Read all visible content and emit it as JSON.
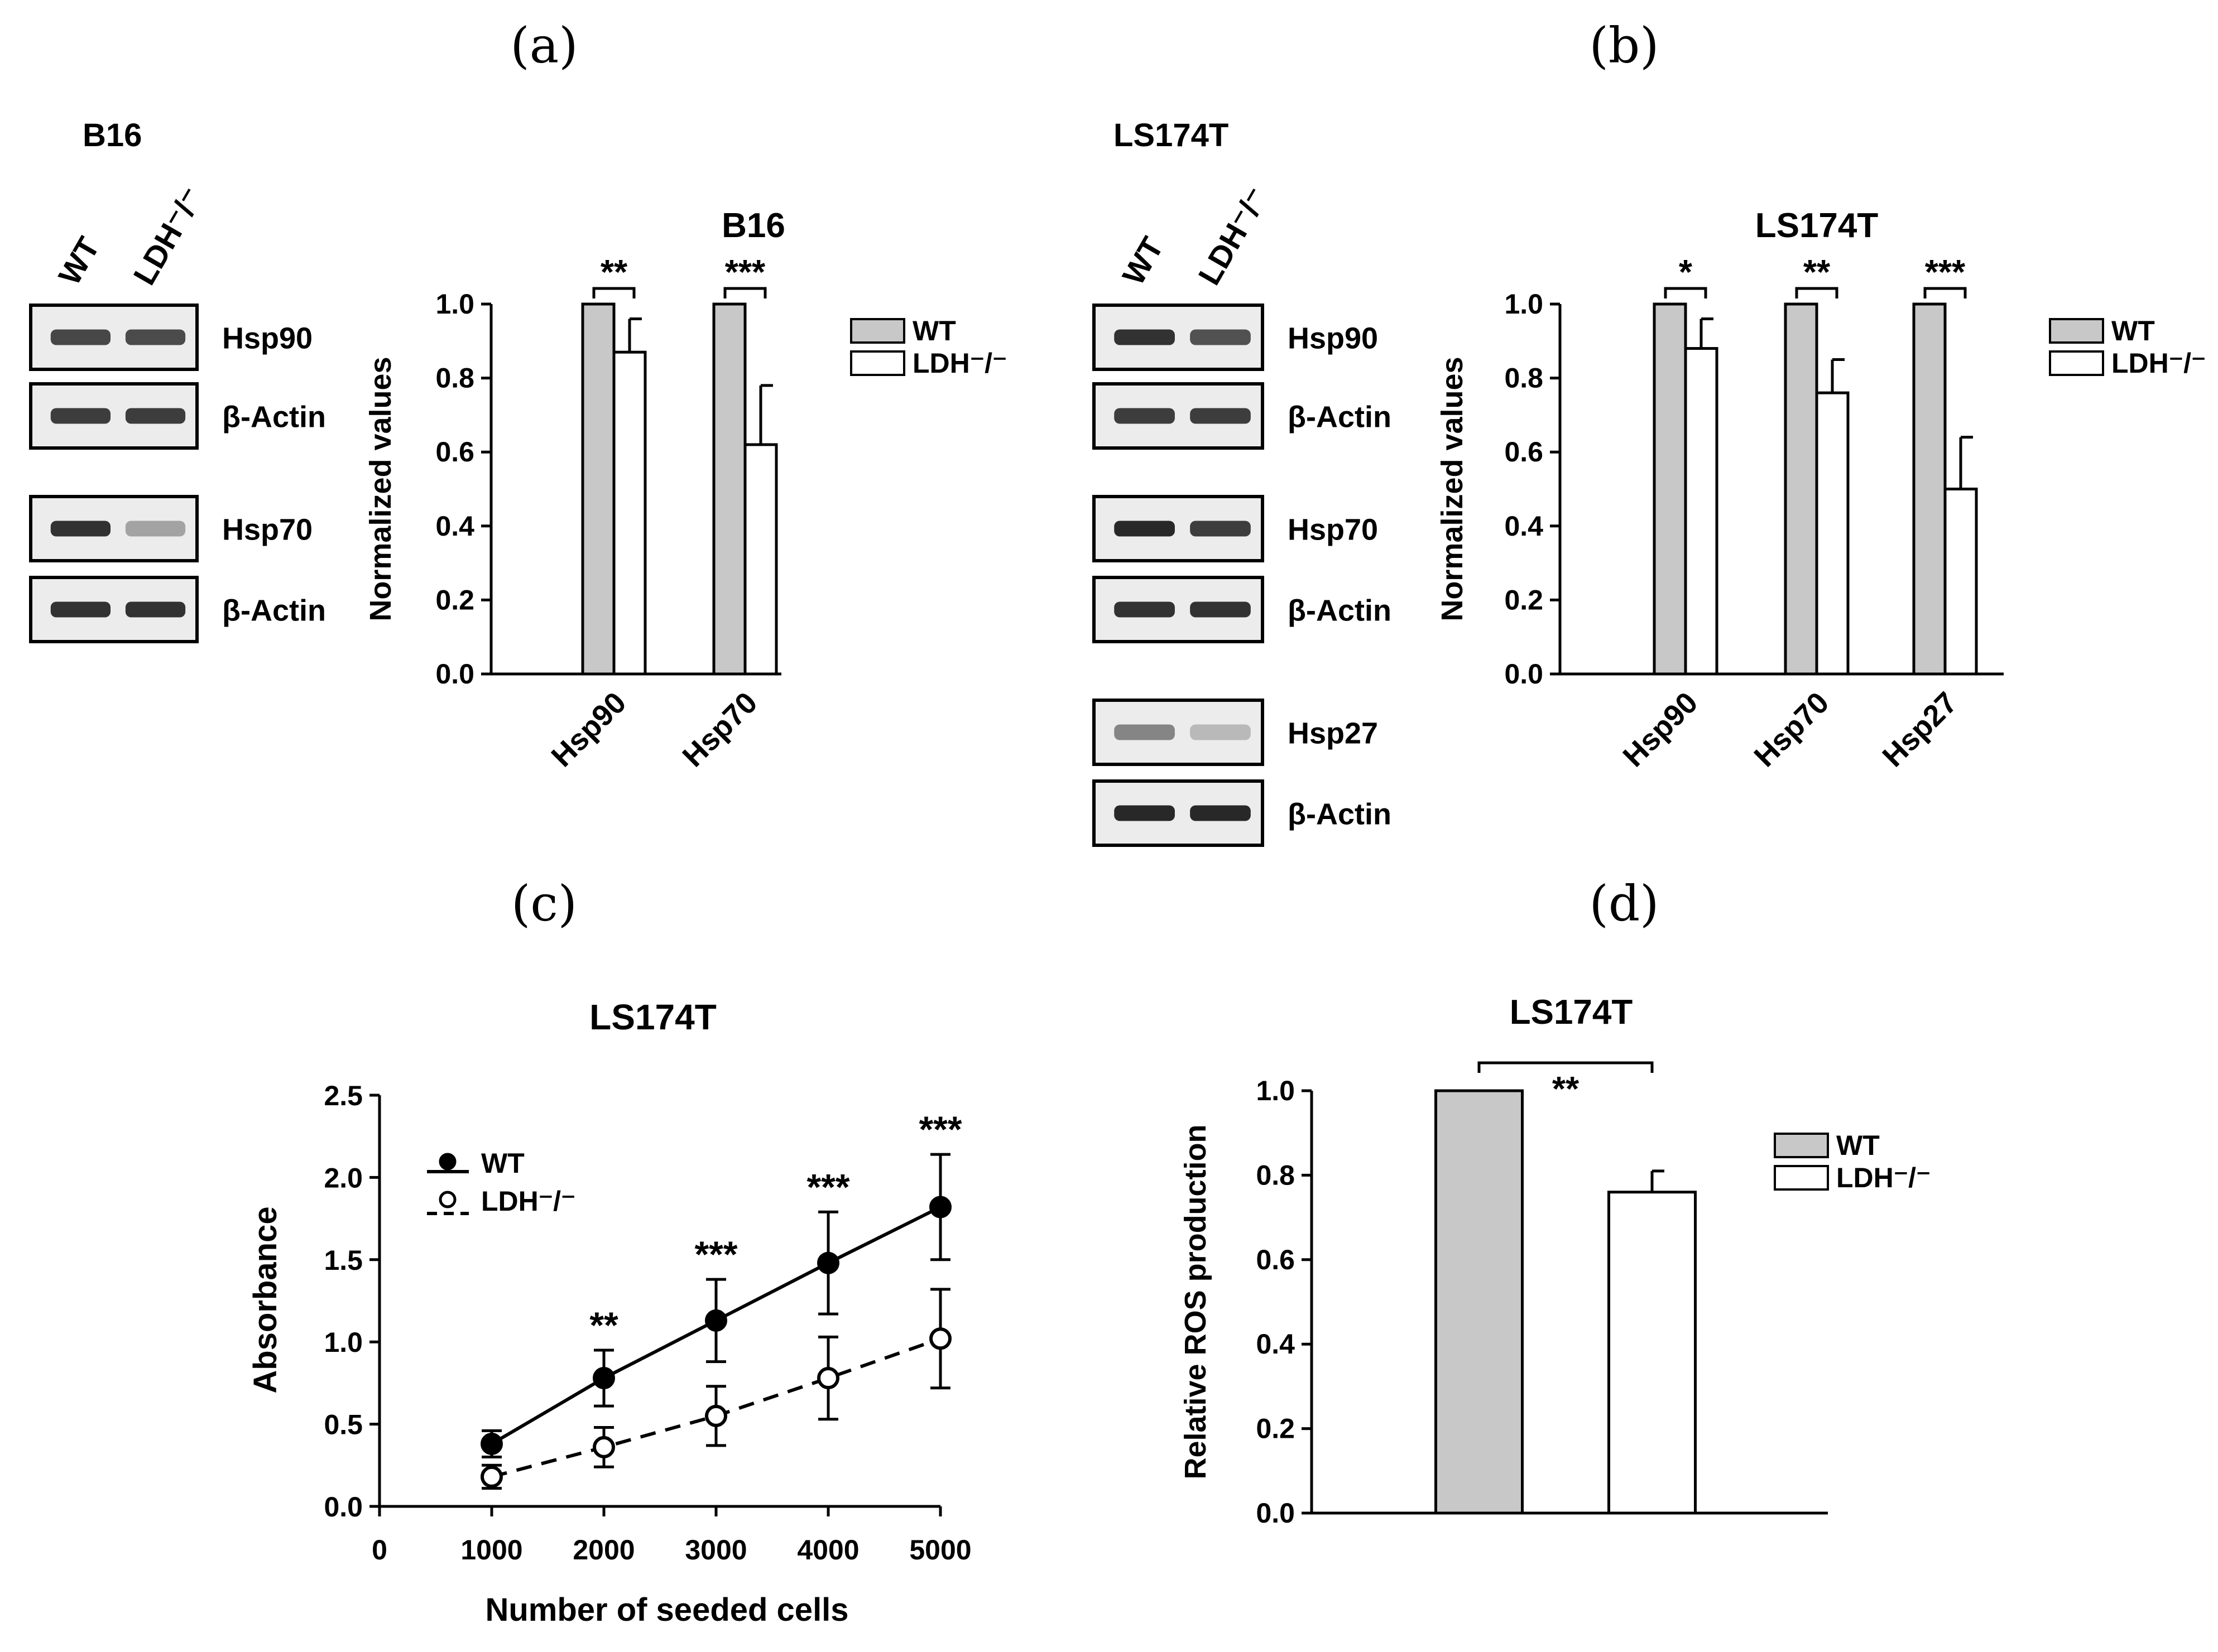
{
  "panels": {
    "a": "(a)",
    "b": "(b)",
    "c": "(c)",
    "d": "(d)"
  },
  "blots": {
    "a": {
      "cell_line": "B16",
      "lanes": [
        "WT",
        "LDH⁻/⁻"
      ],
      "rows": [
        {
          "label": "Hsp90",
          "wt": 0.8,
          "ko": 0.78
        },
        {
          "label": "β-Actin",
          "wt": 0.85,
          "ko": 0.85
        },
        {
          "label": "Hsp70",
          "wt": 0.9,
          "ko": 0.35
        },
        {
          "label": "β-Actin",
          "wt": 0.9,
          "ko": 0.9
        }
      ]
    },
    "b": {
      "cell_line": "LS174T",
      "lanes": [
        "WT",
        "LDH⁻/⁻"
      ],
      "rows": [
        {
          "label": "Hsp90",
          "wt": 0.9,
          "ko": 0.75
        },
        {
          "label": "β-Actin",
          "wt": 0.85,
          "ko": 0.85
        },
        {
          "label": "Hsp70",
          "wt": 0.95,
          "ko": 0.85
        },
        {
          "label": "β-Actin",
          "wt": 0.9,
          "ko": 0.9
        },
        {
          "label": "Hsp27",
          "wt": 0.5,
          "ko": 0.25
        },
        {
          "label": "β-Actin",
          "wt": 0.95,
          "ko": 0.95
        }
      ]
    }
  },
  "legend": {
    "wt": "WT",
    "ko": "LDH⁻/⁻"
  },
  "colors": {
    "wt_fill": "#c8c8c8",
    "ko_fill": "#ffffff",
    "stroke": "#000000"
  },
  "chart_data": [
    {
      "id": "a",
      "type": "bar",
      "title": "B16",
      "ylabel": "Normalized values",
      "xlabel": "",
      "ylim": [
        0,
        1.0
      ],
      "yticks": [
        "0.0",
        "0.2",
        "0.4",
        "0.6",
        "0.8",
        "1.0"
      ],
      "categories": [
        "Hsp90",
        "Hsp70"
      ],
      "series": [
        {
          "name": "WT",
          "values": [
            1.0,
            1.0
          ],
          "errors": [
            0,
            0
          ]
        },
        {
          "name": "LDH⁻/⁻",
          "values": [
            0.87,
            0.62
          ],
          "errors": [
            0.09,
            0.16
          ]
        }
      ],
      "significance": [
        "**",
        "***"
      ],
      "legend": "right"
    },
    {
      "id": "b",
      "type": "bar",
      "title": "LS174T",
      "ylabel": "Normalized values",
      "xlabel": "",
      "ylim": [
        0,
        1.0
      ],
      "yticks": [
        "0.0",
        "0.2",
        "0.4",
        "0.6",
        "0.8",
        "1.0"
      ],
      "categories": [
        "Hsp90",
        "Hsp70",
        "Hsp27"
      ],
      "series": [
        {
          "name": "WT",
          "values": [
            1.0,
            1.0,
            1.0
          ],
          "errors": [
            0,
            0,
            0
          ]
        },
        {
          "name": "LDH⁻/⁻",
          "values": [
            0.88,
            0.76,
            0.5
          ],
          "errors": [
            0.08,
            0.09,
            0.14
          ]
        }
      ],
      "significance": [
        "*",
        "**",
        "***"
      ],
      "legend": "right"
    },
    {
      "id": "c",
      "type": "line",
      "title": "LS174T",
      "xlabel": "Number of seeded cells",
      "ylabel": "Absorbance",
      "xlim": [
        0,
        5000
      ],
      "ylim": [
        0,
        2.5
      ],
      "xticks": [
        "0",
        "1000",
        "2000",
        "3000",
        "4000",
        "5000"
      ],
      "yticks": [
        "0.0",
        "0.5",
        "1.0",
        "1.5",
        "2.0",
        "2.5"
      ],
      "x": [
        1000,
        2000,
        3000,
        4000,
        5000
      ],
      "series": [
        {
          "name": "WT",
          "values": [
            0.38,
            0.78,
            1.13,
            1.48,
            1.82
          ],
          "errors": [
            0.08,
            0.17,
            0.25,
            0.31,
            0.32
          ]
        },
        {
          "name": "LDH⁻/⁻",
          "values": [
            0.18,
            0.36,
            0.55,
            0.78,
            1.02
          ],
          "errors": [
            0.07,
            0.12,
            0.18,
            0.25,
            0.3
          ]
        }
      ],
      "significance": [
        "",
        "**",
        "***",
        "***",
        "***"
      ],
      "legend": "top-left"
    },
    {
      "id": "d",
      "type": "bar",
      "title": "LS174T",
      "ylabel": "Relative ROS production",
      "xlabel": "",
      "ylim": [
        0,
        1.0
      ],
      "yticks": [
        "0.0",
        "0.2",
        "0.4",
        "0.6",
        "0.8",
        "1.0"
      ],
      "categories": [
        "WT",
        "LDH⁻/⁻"
      ],
      "series": [
        {
          "name": "Relative ROS",
          "values": [
            1.0,
            0.76
          ],
          "errors": [
            0,
            0.05
          ]
        }
      ],
      "significance": [
        "**"
      ],
      "legend": "right"
    }
  ]
}
